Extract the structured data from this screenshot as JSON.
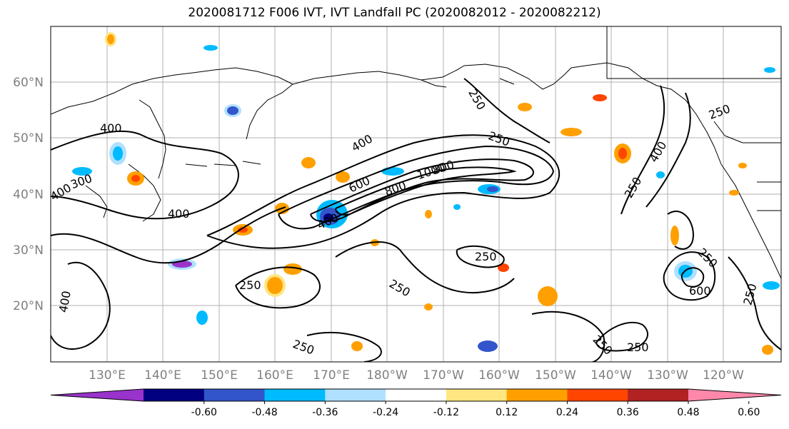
{
  "title": "2020081712 F006 IVT, IVT Landfall PC (2020082012 - 2020082212)",
  "lon_labels": [
    "130°E",
    "140°E",
    "150°E",
    "160°E",
    "170°E",
    "180°W",
    "170°W",
    "160°W",
    "150°W",
    "140°W",
    "130°W",
    "120°W"
  ],
  "lat_labels": [
    "60°N",
    "50°N",
    "40°N",
    "30°N",
    "20°N"
  ],
  "colorbar": {
    "ticks": [
      "-0.60",
      "-0.48",
      "-0.36",
      "-0.24",
      "-0.12",
      "0.12",
      "0.24",
      "0.36",
      "0.48",
      "0.60"
    ],
    "colors": [
      "#9933cc",
      "#000080",
      "#3355cc",
      "#00bbff",
      "#b0e0ff",
      "#ffffff",
      "#ffe680",
      "#ffa000",
      "#ff4500",
      "#b22222",
      "#ff88aa"
    ]
  },
  "contour_labels": [
    "400",
    "250",
    "400",
    "250",
    "800",
    "600",
    "800",
    "1000",
    "400",
    "300",
    "400",
    "400",
    "250",
    "250",
    "250",
    "250",
    "400",
    "250",
    "250",
    "250",
    "600",
    "250",
    "250",
    "250",
    "400"
  ],
  "colors": {
    "positive_fill": "#ffa000",
    "positive_halo": "#ffe680",
    "negative_fill": "#00bbff",
    "negative_halo": "#b0e0ff"
  }
}
